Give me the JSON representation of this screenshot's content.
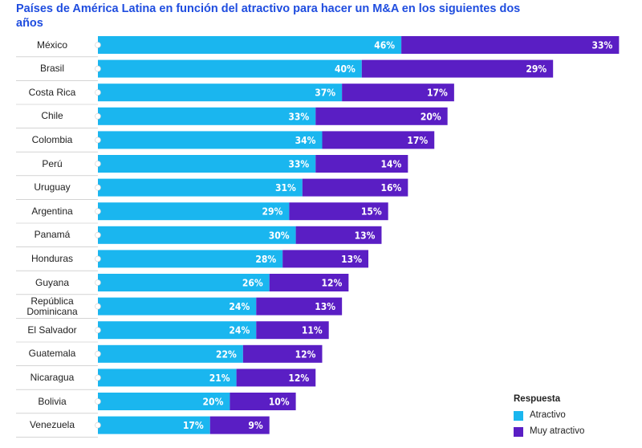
{
  "chart_data": {
    "type": "stacked-bar-horizontal",
    "title": "Países de América Latina en función del atractivo para hacer un M&A en los siguientes dos años",
    "categories": [
      "México",
      "Brasil",
      "Costa Rica",
      "Chile",
      "Colombia",
      "Perú",
      "Uruguay",
      "Argentina",
      "Panamá",
      "Honduras",
      "Guyana",
      "República Dominicana",
      "El Salvador",
      "Guatemala",
      "Nicaragua",
      "Bolivia",
      "Venezuela"
    ],
    "series": [
      {
        "name": "Atractivo",
        "color": "#1ab6ef",
        "values": [
          46,
          40,
          37,
          33,
          34,
          33,
          31,
          29,
          30,
          28,
          26,
          24,
          24,
          22,
          21,
          20,
          17
        ],
        "value_labels": [
          "46%",
          "40%",
          "37%",
          "33%",
          "34%",
          "33%",
          "31%",
          "29%",
          "30%",
          "28%",
          "26%",
          "24%",
          "24%",
          "22%",
          "21%",
          "20%",
          "17%"
        ]
      },
      {
        "name": "Muy atractivo",
        "color": "#5a1ec4",
        "values": [
          33,
          29,
          17,
          20,
          17,
          14,
          16,
          15,
          13,
          13,
          12,
          13,
          11,
          12,
          12,
          10,
          9
        ],
        "value_labels": [
          "33%",
          "29%",
          "17%",
          "20%",
          "17%",
          "14%",
          "16%",
          "15%",
          "13%",
          "13%",
          "12%",
          "13%",
          "11%",
          "12%",
          "12%",
          "10%",
          "9%"
        ]
      }
    ],
    "legend_title": "Respuesta",
    "legend_position": "bottom-right"
  }
}
